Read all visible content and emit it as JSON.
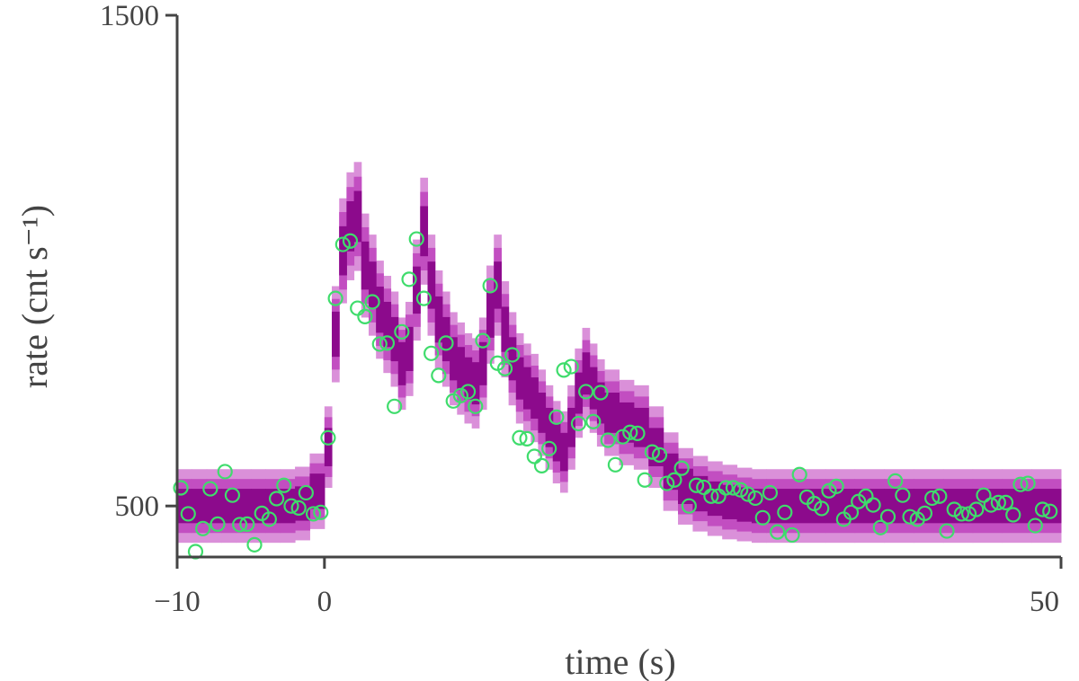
{
  "chart_data": {
    "type": "scatter",
    "xlabel": "time (s)",
    "ylabel": "rate (cnt s⁻¹)",
    "xlim": [
      -10,
      50
    ],
    "ylim": [
      396,
      1500
    ],
    "xticks": [
      {
        "value": -10,
        "label": "−10"
      },
      0,
      50
    ],
    "yticks": [
      500,
      1500
    ],
    "band_edges": [
      -10,
      -9,
      -8,
      -7,
      -6,
      -5,
      -4,
      -3,
      -2,
      -1,
      0,
      0.5,
      1,
      1.5,
      2,
      2.5,
      3,
      3.5,
      4,
      4.5,
      5,
      5.5,
      6,
      6.5,
      7,
      7.5,
      8,
      8.5,
      9,
      9.5,
      10,
      10.5,
      11,
      11.5,
      12,
      12.5,
      13,
      13.5,
      14,
      14.5,
      15,
      15.5,
      16,
      16.5,
      17,
      17.5,
      18,
      18.5,
      19,
      20,
      21,
      22,
      23,
      24,
      25,
      26,
      27,
      28,
      29,
      30,
      32,
      34,
      36,
      38,
      40,
      42,
      44,
      46,
      48,
      50
    ],
    "bands": [
      {
        "color": "#da90d9",
        "lower": [
          425,
          425,
          425,
          425,
          425,
          425,
          425,
          425,
          430,
          453,
          537,
          752,
          913,
          960,
          979,
          884,
          847,
          800,
          771,
          743,
          696,
          724,
          837,
          951,
          847,
          780,
          743,
          705,
          686,
          668,
          658,
          696,
          790,
          847,
          762,
          705,
          668,
          649,
          630,
          602,
          574,
          546,
          527,
          574,
          639,
          677,
          649,
          621,
          602,
          583,
          574,
          537,
          490,
          462,
          448,
          439,
          432,
          428,
          425,
          425,
          425,
          425,
          425,
          425,
          425,
          425,
          425,
          425,
          425
        ],
        "upper": [
          575,
          575,
          575,
          575,
          575,
          575,
          575,
          575,
          580,
          607,
          703,
          948,
          1127,
          1180,
          1201,
          1096,
          1053,
          1000,
          969,
          937,
          884,
          916,
          1043,
          1169,
          1053,
          980,
          937,
          895,
          874,
          852,
          842,
          884,
          990,
          1053,
          958,
          895,
          852,
          831,
          810,
          778,
          746,
          714,
          693,
          746,
          821,
          863,
          831,
          799,
          778,
          757,
          746,
          703,
          650,
          618,
          602,
          591,
          584,
          578,
          575,
          575,
          575,
          575,
          575,
          575,
          575,
          575,
          575,
          575,
          575
        ]
      },
      {
        "color": "#c24ec1",
        "lower": [
          445,
          445,
          445,
          445,
          445,
          445,
          445,
          445,
          450,
          473,
          559,
          778,
          941,
          990,
          1009,
          912,
          874,
          826,
          797,
          769,
          721,
          750,
          865,
          980,
          874,
          807,
          769,
          731,
          711,
          692,
          683,
          721,
          817,
          874,
          788,
          731,
          692,
          673,
          654,
          626,
          597,
          568,
          549,
          597,
          663,
          702,
          673,
          645,
          626,
          606,
          597,
          559,
          511,
          483,
          469,
          459,
          452,
          448,
          445,
          445,
          445,
          445,
          445,
          445,
          445,
          445,
          445,
          445,
          445
        ],
        "upper": [
          555,
          555,
          555,
          555,
          555,
          555,
          555,
          555,
          560,
          587,
          681,
          922,
          1099,
          1150,
          1171,
          1068,
          1026,
          974,
          943,
          911,
          859,
          890,
          1015,
          1140,
          1026,
          953,
          911,
          869,
          849,
          828,
          817,
          859,
          963,
          1026,
          932,
          869,
          828,
          807,
          786,
          754,
          723,
          692,
          671,
          723,
          797,
          838,
          807,
          775,
          754,
          734,
          723,
          681,
          629,
          597,
          581,
          571,
          564,
          558,
          555,
          555,
          555,
          555,
          555,
          555,
          555,
          555,
          555,
          555,
          555
        ]
      },
      {
        "color": "#8c0a8c",
        "lower": [
          465,
          465,
          465,
          465,
          465,
          465,
          465,
          465,
          470,
          494,
          581,
          804,
          970,
          1019,
          1038,
          941,
          902,
          853,
          824,
          795,
          746,
          775,
          892,
          1009,
          902,
          833,
          795,
          756,
          736,
          717,
          707,
          746,
          843,
          902,
          814,
          756,
          717,
          697,
          678,
          649,
          620,
          591,
          571,
          620,
          688,
          727,
          697,
          668,
          649,
          629,
          620,
          581,
          533,
          504,
          489,
          480,
          473,
          468,
          465,
          465,
          465,
          465,
          465,
          465,
          465,
          465,
          465,
          465,
          465
        ],
        "upper": [
          535,
          535,
          535,
          535,
          535,
          535,
          535,
          535,
          540,
          566,
          659,
          896,
          1070,
          1121,
          1142,
          1039,
          998,
          947,
          916,
          885,
          834,
          865,
          988,
          1111,
          998,
          927,
          885,
          844,
          824,
          803,
          793,
          834,
          937,
          998,
          906,
          844,
          803,
          783,
          762,
          731,
          700,
          669,
          649,
          700,
          772,
          813,
          783,
          752,
          731,
          711,
          700,
          659,
          607,
          576,
          561,
          550,
          543,
          538,
          535,
          535,
          535,
          535,
          535,
          535,
          535,
          535,
          535,
          535,
          535
        ]
      }
    ],
    "x": [
      -9.75,
      -9.25,
      -8.75,
      -8.25,
      -7.75,
      -7.25,
      -6.75,
      -6.25,
      -5.75,
      -5.25,
      -4.75,
      -4.25,
      -3.75,
      -3.25,
      -2.75,
      -2.25,
      -1.75,
      -1.25,
      -0.75,
      -0.25,
      0.25,
      0.75,
      1.25,
      1.75,
      2.25,
      2.75,
      3.25,
      3.75,
      4.25,
      4.75,
      5.25,
      5.75,
      6.25,
      6.75,
      7.25,
      7.75,
      8.25,
      8.75,
      9.25,
      9.75,
      10.25,
      10.75,
      11.25,
      11.75,
      12.25,
      12.75,
      13.25,
      13.75,
      14.25,
      14.75,
      15.25,
      15.75,
      16.25,
      16.75,
      17.25,
      17.75,
      18.25,
      18.75,
      19.25,
      19.75,
      20.25,
      20.75,
      21.25,
      21.75,
      22.25,
      22.75,
      23.25,
      23.75,
      24.25,
      24.75,
      25.25,
      25.75,
      26.25,
      26.75,
      27.25,
      27.75,
      28.25,
      28.75,
      29.25,
      29.75,
      30.25,
      30.75,
      31.25,
      31.75,
      32.25,
      32.75,
      33.25,
      33.75,
      34.25,
      34.75,
      35.25,
      35.75,
      36.25,
      36.75,
      37.25,
      37.75,
      38.25,
      38.75,
      39.25,
      39.75,
      40.25,
      40.75,
      41.25,
      41.75,
      42.25,
      42.75,
      43.25,
      43.75,
      44.25,
      44.75,
      45.25,
      45.75,
      46.25,
      46.75,
      47.25,
      47.75,
      48.25,
      48.75,
      49.25
    ],
    "series": [
      {
        "color": "#3fdc6c",
        "values": [
          537,
          484,
          407,
          454,
          535,
          463,
          570,
          522,
          462,
          463,
          421,
          485,
          473,
          515,
          542,
          500,
          496,
          527,
          484,
          487,
          639,
          923,
          1033,
          1040,
          903,
          886,
          916,
          830,
          832,
          703,
          855,
          962,
          1044,
          923,
          811,
          766,
          832,
          714,
          725,
          733,
          703,
          837,
          949,
          791,
          780,
          808,
          639,
          637,
          601,
          582,
          617,
          681,
          777,
          784,
          668,
          733,
          672,
          731,
          634,
          584,
          641,
          650,
          648,
          553,
          610,
          604,
          546,
          553,
          577,
          500,
          542,
          538,
          520,
          520,
          537,
          537,
          533,
          524,
          516,
          476,
          527,
          447,
          487,
          441,
          564,
          518,
          505,
          495,
          531,
          540,
          473,
          487,
          509,
          520,
          502,
          456,
          478,
          551,
          522,
          478,
          473,
          485,
          516,
          520,
          449,
          493,
          484,
          484,
          493,
          522,
          502,
          507,
          507,
          482,
          544,
          546,
          460,
          493,
          489
        ]
      }
    ]
  }
}
